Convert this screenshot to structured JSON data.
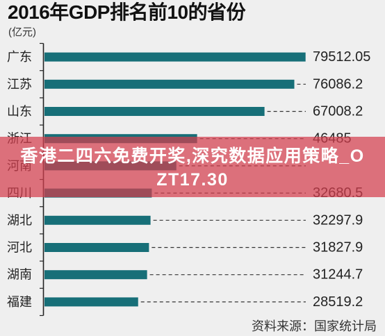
{
  "page": {
    "background": "#efefef"
  },
  "chart_data": {
    "type": "bar",
    "orientation": "horizontal",
    "title": "2016年GDP排名前10的省份",
    "unit": "(亿元)",
    "categories": [
      "广东",
      "江苏",
      "山东",
      "浙江",
      "河南",
      "四川",
      "湖北",
      "河北",
      "湖南",
      "福建"
    ],
    "values": [
      79512.05,
      76086.2,
      67008.2,
      46485,
      40160,
      32680.5,
      32297.9,
      31827.9,
      31244.7,
      28519.2
    ],
    "value_labels": [
      "79512.05",
      "76086.2",
      "67008.2",
      "46485",
      "",
      "32680.5",
      "32297.9",
      "31827.9",
      "31244.7",
      "28519.2"
    ],
    "xlim": [
      0,
      80000
    ],
    "grid": false,
    "legend": "none",
    "bar_color": "#176f78",
    "leader_color": "#333333",
    "axis_color": "#222222",
    "source": "资料来源：国家统计局"
  },
  "overlay_banner": {
    "lines": [
      "香港二四六免费开奖,深究数据应用策略_O",
      "ZT17.30"
    ],
    "color": "rgba(212, 62, 78, 0.72)"
  }
}
